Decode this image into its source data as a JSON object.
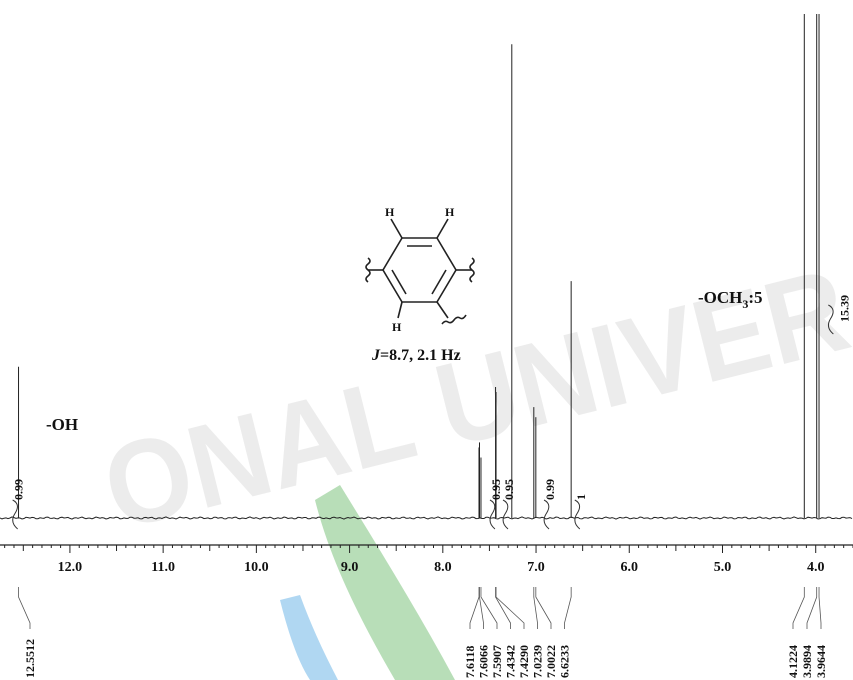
{
  "chart_data": {
    "type": "line",
    "title": "",
    "xlabel": "",
    "ylabel": "",
    "x_axis_reversed": true,
    "xlim": [
      12.75,
      3.6
    ],
    "grid": false,
    "x_ticks": [
      "12.0",
      "11.0",
      "10.0",
      "9.0",
      "8.0",
      "7.0",
      "6.0",
      "5.0",
      "4.0"
    ],
    "x_tick_values": [
      12.0,
      11.0,
      10.0,
      9.0,
      8.0,
      7.0,
      6.0,
      5.0,
      4.0
    ],
    "peaks": [
      {
        "ppm": 12.5512,
        "height": 0.3
      },
      {
        "ppm": 7.6118,
        "height": 0.14
      },
      {
        "ppm": 7.6066,
        "height": 0.15
      },
      {
        "ppm": 7.5907,
        "height": 0.12
      },
      {
        "ppm": 7.4342,
        "height": 0.26
      },
      {
        "ppm": 7.429,
        "height": 0.25
      },
      {
        "ppm": 7.26,
        "height": 0.94
      },
      {
        "ppm": 7.0239,
        "height": 0.22
      },
      {
        "ppm": 7.0022,
        "height": 0.2
      },
      {
        "ppm": 6.6233,
        "height": 0.47
      },
      {
        "ppm": 4.1224,
        "height": 1.0
      },
      {
        "ppm": 3.9894,
        "height": 1.0
      },
      {
        "ppm": 3.9644,
        "height": 1.0
      }
    ],
    "peak_labels": [
      "12.5512",
      "7.6118",
      "7.6066",
      "7.5907",
      "7.4342",
      "7.4290",
      "7.0239",
      "7.0022",
      "6.6233",
      "4.1224",
      "3.9894",
      "3.9644"
    ],
    "integrals": [
      {
        "ppm": 12.55,
        "label": "0.99"
      },
      {
        "ppm": 7.43,
        "label": "0.95"
      },
      {
        "ppm": 7.29,
        "label": "0.95"
      },
      {
        "ppm": 6.85,
        "label": "0.99"
      },
      {
        "ppm": 6.52,
        "label": "1"
      },
      {
        "ppm": 3.8,
        "label": "15.39"
      }
    ],
    "annotations": {
      "oh": "-OH",
      "och3_prefix": "-OCH",
      "och3_sub": "3",
      "och3_suffix": ":5",
      "j_label": "J",
      "j_value": "=8.7, 2.1 Hz"
    },
    "structure_labels": {
      "h_top_left": "H",
      "h_top_right": "H",
      "h_bottom": "H"
    },
    "watermark": "ONAL UNIVER"
  }
}
